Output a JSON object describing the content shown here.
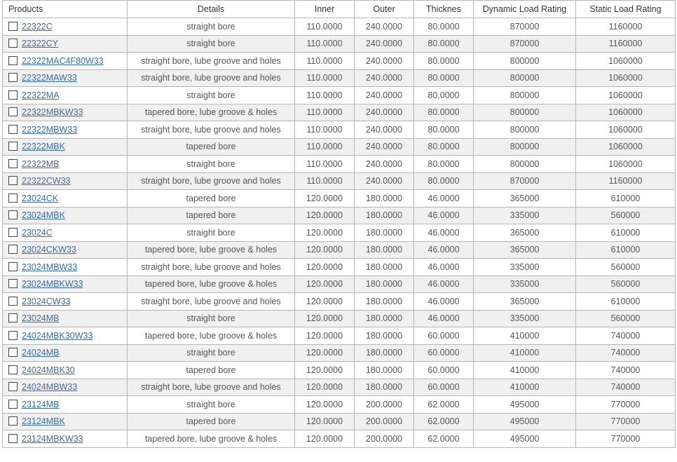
{
  "table": {
    "headers": [
      "Products",
      "Details",
      "Inner",
      "Outer",
      "Thicknes",
      "Dynamic Load Rating",
      "Static Load Rating"
    ],
    "rows": [
      [
        "22322C",
        "straight bore",
        "110.0000",
        "240.0000",
        "80.0000",
        "870000",
        "1160000"
      ],
      [
        "22322CY",
        "straight bore",
        "110.0000",
        "240.0000",
        "80.0000",
        "870000",
        "1160000"
      ],
      [
        "22322MAC4F80W33",
        "straight bore, lube groove and holes",
        "110.0000",
        "240.0000",
        "80.0000",
        "800000",
        "1060000"
      ],
      [
        "22322MAW33",
        "straight bore, lube groove and holes",
        "110.0000",
        "240.0000",
        "80.0000",
        "800000",
        "1060000"
      ],
      [
        "22322MA",
        "straight bore",
        "110.0000",
        "240.0000",
        "80.0000",
        "800000",
        "1060000"
      ],
      [
        "22322MBKW33",
        "tapered bore, lube groove & holes",
        "110.0000",
        "240.0000",
        "80.0000",
        "800000",
        "1060000"
      ],
      [
        "22322MBW33",
        "straight bore, lube groove and holes",
        "110.0000",
        "240.0000",
        "80.0000",
        "800000",
        "1060000"
      ],
      [
        "22322MBK",
        "tapered bore",
        "110.0000",
        "240.0000",
        "80.0000",
        "800000",
        "1060000"
      ],
      [
        "22322MB",
        "straight bore",
        "110.0000",
        "240.0000",
        "80.0000",
        "800000",
        "1060000"
      ],
      [
        "22322CW33",
        "straight bore, lube groove and holes",
        "110.0000",
        "240.0000",
        "80.0000",
        "870000",
        "1160000"
      ],
      [
        "23024CK",
        "tapered bore",
        "120.0000",
        "180.0000",
        "46.0000",
        "365000",
        "610000"
      ],
      [
        "23024MBK",
        "tapered bore",
        "120.0000",
        "180.0000",
        "46.0000",
        "335000",
        "560000"
      ],
      [
        "23024C",
        "straight bore",
        "120.0000",
        "180.0000",
        "46.0000",
        "365000",
        "610000"
      ],
      [
        "23024CKW33",
        "tapered bore, lube groove & holes",
        "120.0000",
        "180.0000",
        "46.0000",
        "365000",
        "610000"
      ],
      [
        "23024MBW33",
        "straight bore, lube groove and holes",
        "120.0000",
        "180.0000",
        "46.0000",
        "335000",
        "560000"
      ],
      [
        "23024MBKW33",
        "tapered bore, lube groove & holes",
        "120.0000",
        "180.0000",
        "46.0000",
        "335000",
        "560000"
      ],
      [
        "23024CW33",
        "straight bore, lube groove and holes",
        "120.0000",
        "180.0000",
        "46.0000",
        "365000",
        "610000"
      ],
      [
        "23024MB",
        "straight bore",
        "120.0000",
        "180.0000",
        "46.0000",
        "335000",
        "560000"
      ],
      [
        "24024MBK30W33",
        "tapered bore, lube groove & holes",
        "120.0000",
        "180.0000",
        "60.0000",
        "410000",
        "740000"
      ],
      [
        "24024MB",
        "straight bore",
        "120.0000",
        "180.0000",
        "60.0000",
        "410000",
        "740000"
      ],
      [
        "24024MBK30",
        "tapered bore",
        "120.0000",
        "180.0000",
        "60.0000",
        "410000",
        "740000"
      ],
      [
        "24024MBW33",
        "straight bore, lube groove and holes",
        "120.0000",
        "180.0000",
        "60.0000",
        "410000",
        "740000"
      ],
      [
        "23124MB",
        "straight bore",
        "120.0000",
        "200.0000",
        "62.0000",
        "495000",
        "770000"
      ],
      [
        "23124MBK",
        "tapered bore",
        "120.0000",
        "200.0000",
        "62.0000",
        "495000",
        "770000"
      ],
      [
        "23124MBKW33",
        "tapered bore, lube groove & holes",
        "120.0000",
        "200.0000",
        "62.0000",
        "495000",
        "770000"
      ]
    ]
  },
  "colors": {
    "link": "#3a6d9e",
    "alt_row": "#f0f0f0",
    "border": "#b5b5b5"
  }
}
